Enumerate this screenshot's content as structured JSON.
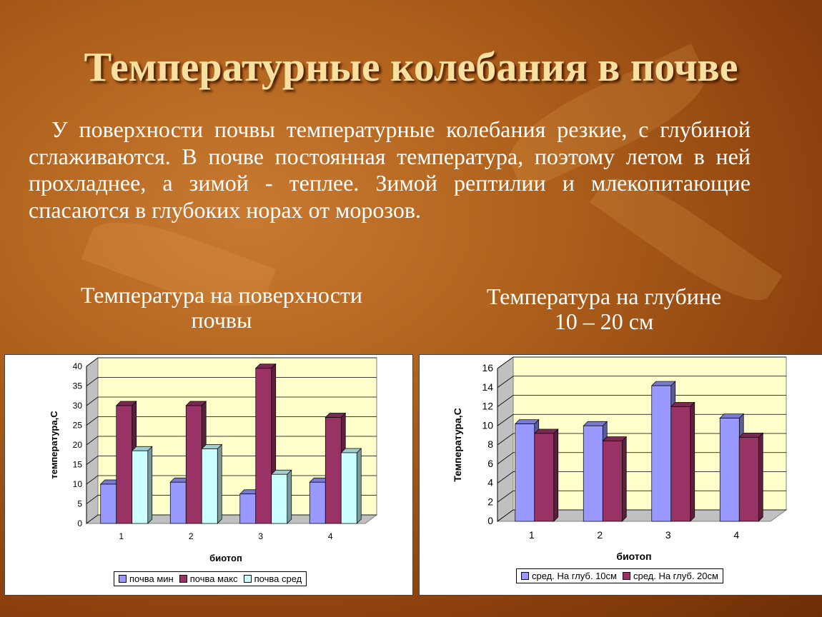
{
  "title": "Температурные колебания в почве",
  "paragraph": "У поверхности почвы температурные колебания резкие, с глубиной сглаживаются. В почве постоянная температура, поэтому летом в ней прохладнее, а зимой - теплее. Зимой рептилии и млекопитающие спасаются в глубоких норах от морозов.",
  "captions": {
    "left_line1": "Температура на поверхности",
    "left_line2": "почвы",
    "right_line1": "Температура на глубине",
    "right_line2": "10 – 20 см"
  },
  "colors": {
    "blue": "#9999ff",
    "maroon": "#993366",
    "cyan": "#ccffff",
    "plot_bg": "#ffffcc"
  },
  "chart_data": [
    {
      "type": "bar",
      "categories": [
        "1",
        "2",
        "3",
        "4"
      ],
      "series": [
        {
          "name": "почва мин",
          "values": [
            10,
            10.5,
            7.5,
            10.5
          ]
        },
        {
          "name": "почва макс",
          "values": [
            30,
            30,
            39.5,
            27
          ]
        },
        {
          "name": "почва сред",
          "values": [
            18.5,
            19,
            12.5,
            18
          ]
        }
      ],
      "xlabel": "биотоп",
      "ylabel": "температура,С",
      "ylim": [
        0,
        40
      ],
      "yticks": [
        "0",
        "5",
        "10",
        "15",
        "20",
        "25",
        "30",
        "35",
        "40"
      ],
      "grid": true,
      "legend": "bottom"
    },
    {
      "type": "bar",
      "categories": [
        "1",
        "2",
        "3",
        "4"
      ],
      "series": [
        {
          "name": "сред. На глуб. 10см",
          "values": [
            10.2,
            10,
            14.2,
            10.8
          ]
        },
        {
          "name": "сред. На глуб. 20см",
          "values": [
            9.2,
            8.4,
            12,
            8.8
          ]
        }
      ],
      "xlabel": "биотоп",
      "ylabel": "Температура,С",
      "ylim": [
        0,
        16
      ],
      "yticks": [
        "0",
        "2",
        "4",
        "6",
        "8",
        "10",
        "12",
        "14",
        "16"
      ],
      "grid": true,
      "legend": "bottom"
    }
  ]
}
